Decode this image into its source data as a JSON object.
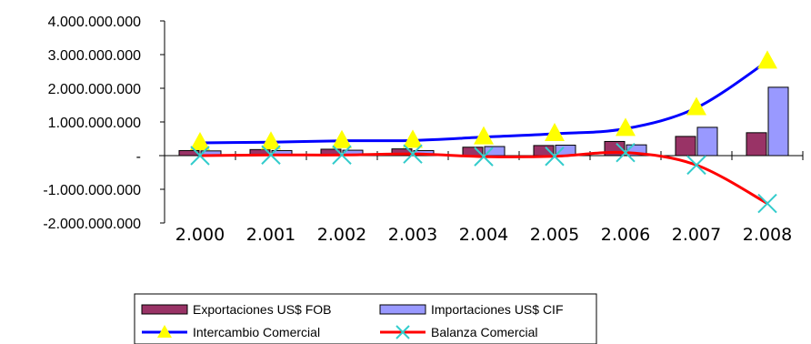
{
  "chart_data": {
    "type": "bar",
    "categories": [
      "2.000",
      "2.001",
      "2.002",
      "2.003",
      "2.004",
      "2.005",
      "2.006",
      "2.007",
      "2.008"
    ],
    "ylim": [
      -2000000000,
      4000000000
    ],
    "y_ticks": [
      {
        "value": 4000000000,
        "label": "4.000.000.000"
      },
      {
        "value": 3000000000,
        "label": "3.000.000.000"
      },
      {
        "value": 2000000000,
        "label": "2.000.000.000"
      },
      {
        "value": 1000000000,
        "label": "1.000.000.000"
      },
      {
        "value": 0,
        "label": "-"
      },
      {
        "value": -1000000000,
        "label": "-1.000.000.000"
      },
      {
        "value": -2000000000,
        "label": "-2.000.000.000"
      }
    ],
    "grid": false,
    "legend_position": "bottom",
    "series": [
      {
        "name": "Exportaciones US$ FOB",
        "kind": "bar",
        "color": "#993366",
        "edge": "#000000",
        "values": [
          150000000,
          180000000,
          190000000,
          200000000,
          250000000,
          300000000,
          420000000,
          570000000,
          680000000
        ]
      },
      {
        "name": "Importaciones US$ CIF",
        "kind": "bar",
        "color": "#9999ff",
        "edge": "#000000",
        "values": [
          140000000,
          150000000,
          160000000,
          150000000,
          270000000,
          310000000,
          320000000,
          840000000,
          2030000000
        ]
      },
      {
        "name": "Intercambio Comercial",
        "kind": "line",
        "color": "#0000ff",
        "marker": "triangle",
        "marker_color": "#ffff00",
        "values": [
          380000000,
          400000000,
          440000000,
          450000000,
          550000000,
          650000000,
          800000000,
          1420000000,
          2800000000
        ]
      },
      {
        "name": "Balanza Comercial",
        "kind": "line",
        "color": "#ff0000",
        "marker": "x",
        "marker_color": "#33cccc",
        "values": [
          0,
          20000000,
          20000000,
          50000000,
          -30000000,
          -20000000,
          90000000,
          -280000000,
          -1420000000
        ]
      }
    ]
  }
}
